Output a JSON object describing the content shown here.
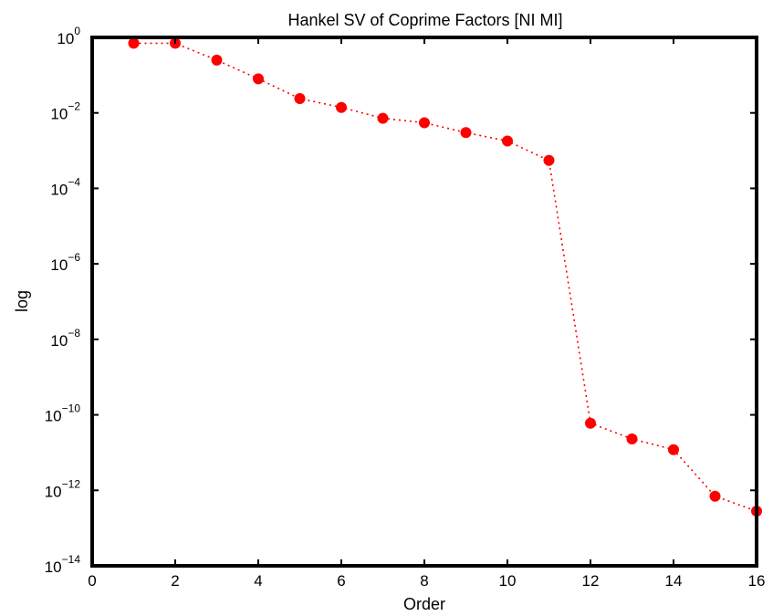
{
  "chart_data": {
    "type": "scatter",
    "title": "Hankel SV of Coprime Factors [NI MI]",
    "xlabel": "Order",
    "ylabel": "log",
    "xlim": [
      0,
      16
    ],
    "ylim": [
      1e-14,
      1
    ],
    "yscale": "log",
    "grid": false,
    "line_style": "dotted",
    "marker": "filled-circle",
    "color": "#ff0000",
    "x_ticks": [
      {
        "value": 0,
        "label": "0"
      },
      {
        "value": 2,
        "label": "2"
      },
      {
        "value": 4,
        "label": "4"
      },
      {
        "value": 6,
        "label": "6"
      },
      {
        "value": 8,
        "label": "8"
      },
      {
        "value": 10,
        "label": "10"
      },
      {
        "value": 12,
        "label": "12"
      },
      {
        "value": 14,
        "label": "14"
      },
      {
        "value": 16,
        "label": "16"
      }
    ],
    "y_ticks": [
      {
        "value": 1e-14,
        "base": "10",
        "exp": "−14"
      },
      {
        "value": 1e-12,
        "base": "10",
        "exp": "−12"
      },
      {
        "value": 1e-10,
        "base": "10",
        "exp": "−10"
      },
      {
        "value": 1e-08,
        "base": "10",
        "exp": "−8"
      },
      {
        "value": 1e-06,
        "base": "10",
        "exp": "−6"
      },
      {
        "value": 0.0001,
        "base": "10",
        "exp": "−4"
      },
      {
        "value": 0.01,
        "base": "10",
        "exp": "−2"
      },
      {
        "value": 1,
        "base": "10",
        "exp": "0"
      }
    ],
    "series": [
      {
        "x": [
          1,
          2,
          3,
          4,
          5,
          6,
          7,
          8,
          9,
          10,
          11,
          12,
          13,
          14,
          15,
          16
        ],
        "y": [
          0.7,
          0.7,
          0.25,
          0.08,
          0.024,
          0.014,
          0.0072,
          0.0055,
          0.003,
          0.0018,
          0.00055,
          6e-11,
          2.3e-11,
          1.2e-11,
          7e-13,
          2.8e-13
        ]
      }
    ]
  }
}
